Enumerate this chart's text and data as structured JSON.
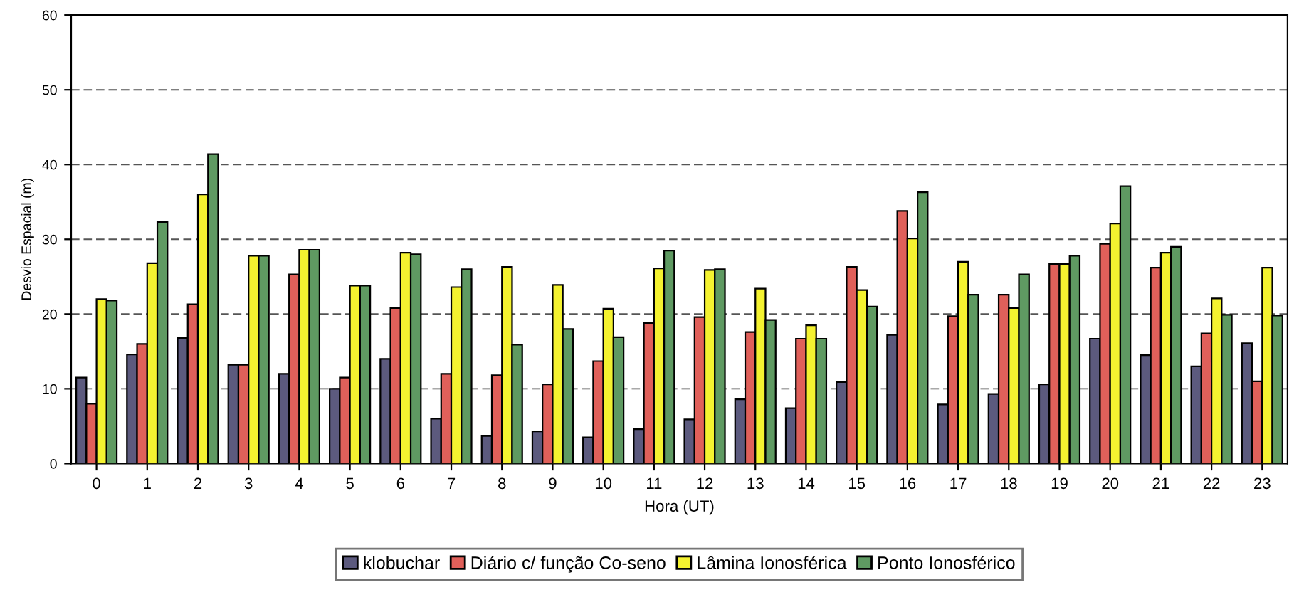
{
  "chart_data": {
    "type": "bar",
    "xlabel": "Hora (UT)",
    "ylabel": "Desvio Espacial (m)",
    "categories": [
      "0",
      "1",
      "2",
      "3",
      "4",
      "5",
      "6",
      "7",
      "8",
      "9",
      "10",
      "11",
      "12",
      "13",
      "14",
      "15",
      "16",
      "17",
      "18",
      "19",
      "20",
      "21",
      "22",
      "23"
    ],
    "series": [
      {
        "name": "klobuchar",
        "color": "#5c5a7e",
        "values": [
          11.5,
          14.6,
          16.8,
          13.2,
          12,
          10,
          14,
          6,
          3.7,
          4.3,
          3.5,
          4.6,
          5.9,
          8.6,
          7.4,
          10.9,
          17.2,
          7.9,
          9.3,
          10.6,
          16.7,
          14.5,
          13,
          16.1
        ]
      },
      {
        "name": "Diário c/ função Co-seno",
        "color": "#e0605a",
        "values": [
          8,
          16,
          21.3,
          13.2,
          25.3,
          11.5,
          20.8,
          12,
          11.8,
          10.6,
          13.7,
          18.8,
          19.6,
          17.6,
          16.7,
          26.3,
          33.8,
          19.7,
          22.6,
          26.7,
          29.4,
          26.2,
          17.4,
          11
        ]
      },
      {
        "name": "Lâmina Ionosférica",
        "color": "#f4f230",
        "values": [
          22,
          26.8,
          36,
          27.8,
          28.6,
          23.8,
          28.2,
          23.6,
          26.3,
          23.9,
          20.7,
          26.1,
          25.9,
          23.4,
          18.5,
          23.2,
          30.1,
          27,
          20.8,
          26.7,
          32.1,
          28.2,
          22.1,
          26.2
        ]
      },
      {
        "name": "Ponto Ionosférico",
        "color": "#5f9a62",
        "values": [
          21.8,
          32.3,
          41.4,
          27.8,
          28.6,
          23.8,
          28,
          26,
          15.9,
          18,
          16.9,
          28.5,
          26,
          19.2,
          16.7,
          21,
          36.3,
          22.6,
          25.3,
          27.8,
          37.1,
          29,
          19.9,
          19.8
        ]
      }
    ],
    "ylim": [
      0,
      60
    ],
    "yticks": [
      0,
      10,
      20,
      30,
      40,
      50,
      60
    ],
    "grid": "y",
    "legend": "bottom"
  }
}
